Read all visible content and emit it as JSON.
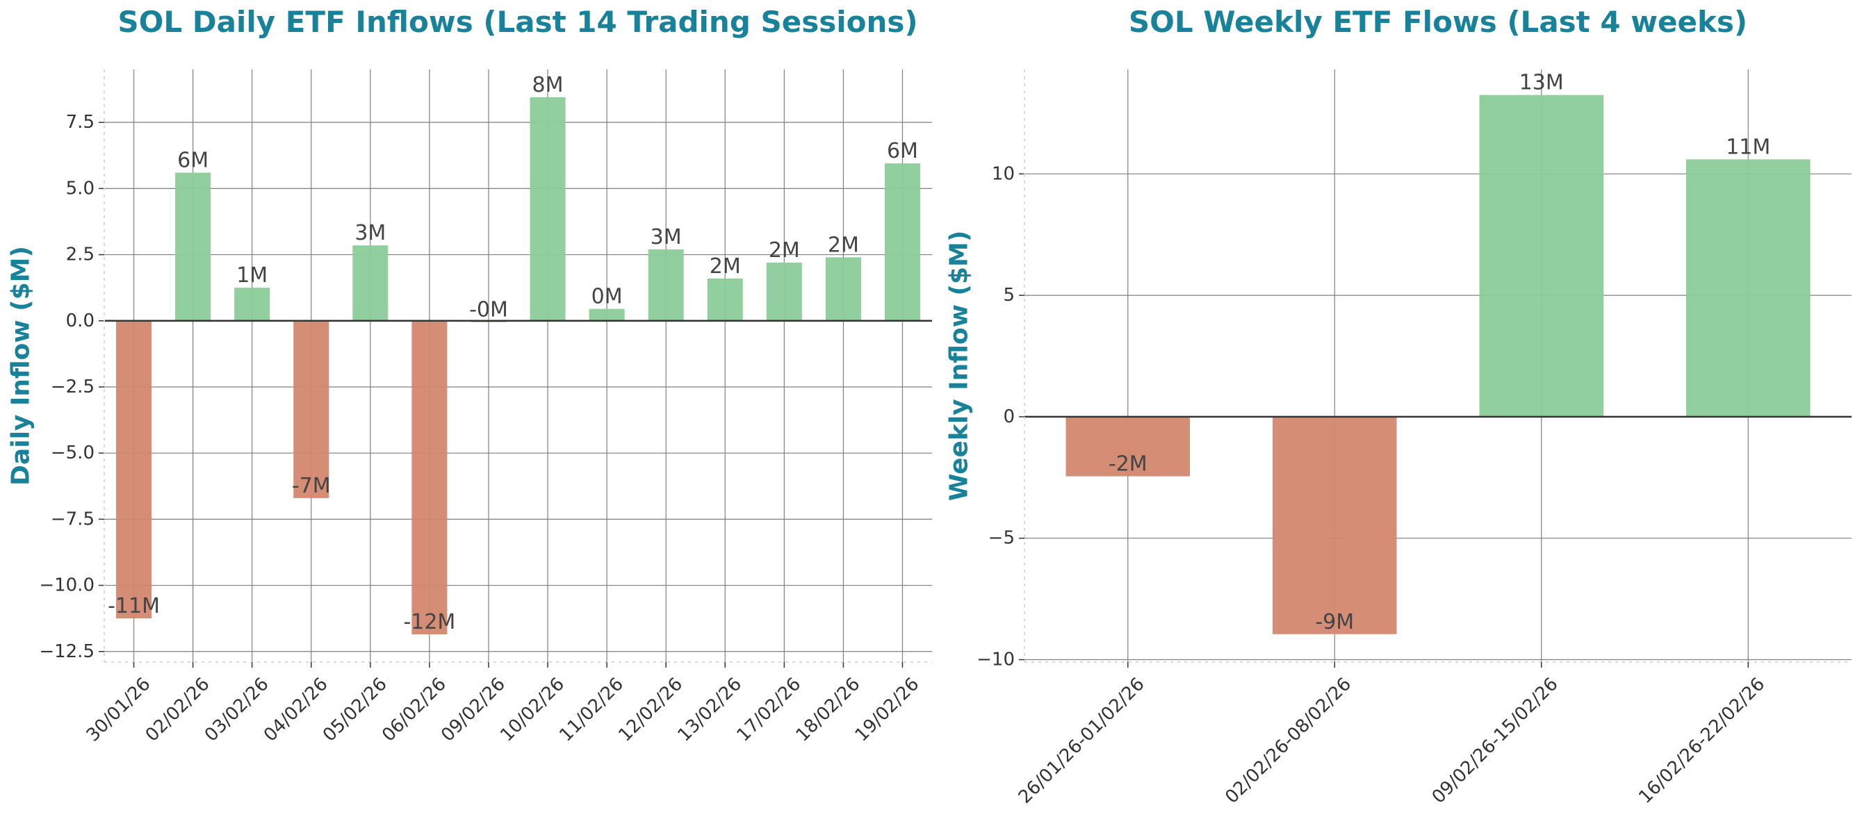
{
  "colors": {
    "title": "#17829a",
    "positive": "#8ccc9a",
    "negative": "#d3876f",
    "grid": "#7f7f7f",
    "zero_line": "#333333",
    "text": "#444444",
    "spine": "#d6d6ee"
  },
  "chart_data": [
    {
      "type": "bar",
      "title": "SOL Daily ETF Inflows (Last 14 Trading Sessions)",
      "xlabel": "",
      "ylabel": "Daily Inflow ($M)",
      "categories": [
        "30/01/26",
        "02/02/26",
        "03/02/26",
        "04/02/26",
        "05/02/26",
        "06/02/26",
        "09/02/26",
        "10/02/26",
        "11/02/26",
        "12/02/26",
        "13/02/26",
        "17/02/26",
        "18/02/26",
        "19/02/26"
      ],
      "values": [
        -11.25,
        5.6,
        1.25,
        -6.7,
        2.85,
        -11.85,
        -0.05,
        8.45,
        0.45,
        2.7,
        1.6,
        2.2,
        2.4,
        5.95
      ],
      "data_labels": [
        "-11M",
        "6M",
        "1M",
        "-7M",
        "3M",
        "-12M",
        "-0M",
        "8M",
        "0M",
        "3M",
        "2M",
        "2M",
        "2M",
        "6M"
      ],
      "ylim": [
        -12.9,
        9.5
      ],
      "yticks": [
        -12.5,
        -10.0,
        -7.5,
        -5.0,
        -2.5,
        0.0,
        2.5,
        5.0,
        7.5
      ],
      "ytick_labels": [
        "−12.5",
        "−10.0",
        "−7.5",
        "−5.0",
        "−2.5",
        "0.0",
        "2.5",
        "5.0",
        "7.5"
      ],
      "grid": true,
      "legend": "none"
    },
    {
      "type": "bar",
      "title": "SOL Weekly ETF Flows (Last 4 weeks)",
      "xlabel": "",
      "ylabel": "Weekly Inflow ($M)",
      "categories": [
        "26/01/26-01/02/26",
        "02/02/26-08/02/26",
        "09/02/26-15/02/26",
        "16/02/26-22/02/26"
      ],
      "values": [
        -2.45,
        -8.95,
        13.25,
        10.6
      ],
      "data_labels": [
        "-2M",
        "-9M",
        "13M",
        "11M"
      ],
      "ylim": [
        -10.1,
        14.3
      ],
      "yticks": [
        -10,
        -5,
        0,
        5,
        10
      ],
      "ytick_labels": [
        "−10",
        "−5",
        "0",
        "5",
        "10"
      ],
      "grid": true,
      "legend": "none"
    }
  ]
}
